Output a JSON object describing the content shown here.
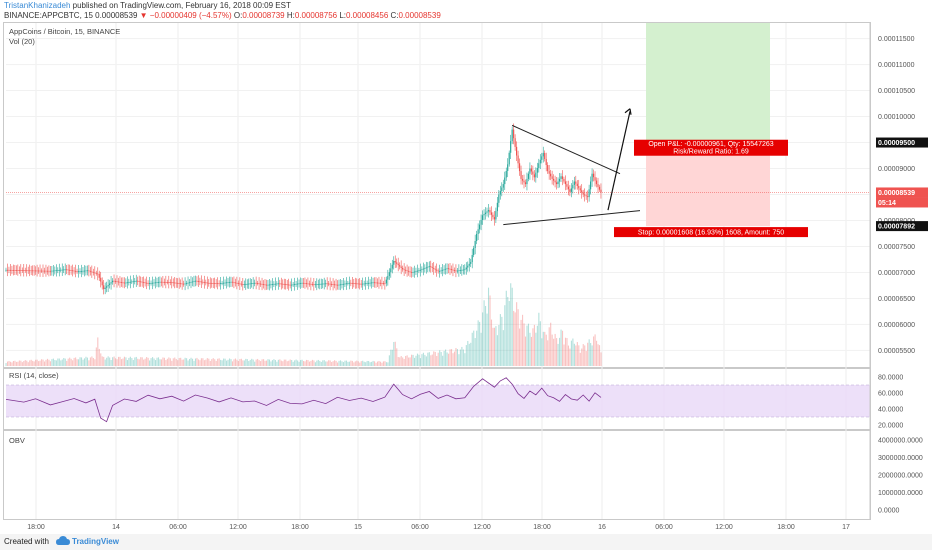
{
  "header": {
    "author": "TristanKhanizadeh",
    "published": " published on TradingView.com, February 16, 2018 00:09 EST",
    "symbol_line": "BINANCE:APPCBTC, 15  0.00008539",
    "change": "−0.00000409 (−4.57%)",
    "ohlc_o_label": "O:",
    "ohlc_o": "0.00008739",
    "ohlc_h_label": "H:",
    "ohlc_h": "0.00008756",
    "ohlc_l_label": "L:",
    "ohlc_l": "0.00008456",
    "ohlc_c_label": "C:",
    "ohlc_c": "0.00008539"
  },
  "panes": {
    "main_title": "AppCoins / Bitcoin, 15, BINANCE",
    "vol_label": "Vol (20)",
    "rsi_label": "RSI (14, close)",
    "obv_label": "OBV"
  },
  "position_tool": {
    "profit_label_line1": "Open P&L: -0.00000961, Qty: 15547263",
    "profit_label_line2": "Risk/Reward Ratio: 1.69",
    "stop_label": "Stop: 0.00001608 (16.93%) 1608, Amount: 750"
  },
  "price_tags": {
    "target": "0.00009500",
    "current": "0.00008539",
    "countdown": "05:14",
    "stop": "0.00007892"
  },
  "colors": {
    "up": "#26a69a",
    "down": "#ef5350",
    "rsi_line": "#7b2f8f",
    "rsi_band": "#e8d8f7",
    "profit_zone": "#d4f0cf",
    "loss_zone": "#ffd6d6",
    "label_red": "#e60000"
  },
  "chart_data": [
    {
      "type": "candlestick",
      "title": "AppCoins / Bitcoin, 15, BINANCE",
      "x_ticks": [
        "18:00",
        "14",
        "06:00",
        "12:00",
        "18:00",
        "15",
        "06:00",
        "12:00",
        "18:00",
        "16",
        "06:00",
        "12:00",
        "18:00",
        "17"
      ],
      "y_ticks": [
        "0.00011500",
        "0.00011000",
        "0.00010500",
        "0.00010000",
        "0.00009500",
        "0.00009000",
        "0.00008500",
        "0.00008000",
        "0.00007500",
        "0.00007000",
        "0.00006500",
        "0.00006000",
        "0.00005500"
      ],
      "ylim": [
        5.2e-05,
        0.000118
      ],
      "close_path": [
        [
          0,
          7.05e-05
        ],
        [
          15,
          7.04e-05
        ],
        [
          30,
          7.03e-05
        ],
        [
          40,
          7.06e-05
        ],
        [
          48,
          7.02e-05
        ],
        [
          55,
          7.04e-05
        ],
        [
          62,
          6.97e-05
        ],
        [
          66,
          6.68e-05
        ],
        [
          72,
          6.84e-05
        ],
        [
          80,
          6.8e-05
        ],
        [
          88,
          6.84e-05
        ],
        [
          96,
          6.79e-05
        ],
        [
          104,
          6.82e-05
        ],
        [
          112,
          6.81e-05
        ],
        [
          120,
          6.78e-05
        ],
        [
          128,
          6.84e-05
        ],
        [
          136,
          6.8e-05
        ],
        [
          144,
          6.79e-05
        ],
        [
          152,
          6.82e-05
        ],
        [
          160,
          6.77e-05
        ],
        [
          168,
          6.8e-05
        ],
        [
          176,
          6.76e-05
        ],
        [
          184,
          6.79e-05
        ],
        [
          192,
          6.76e-05
        ],
        [
          200,
          6.8e-05
        ],
        [
          208,
          6.77e-05
        ],
        [
          216,
          6.79e-05
        ],
        [
          224,
          6.76e-05
        ],
        [
          232,
          6.8e-05
        ],
        [
          240,
          6.78e-05
        ],
        [
          248,
          6.81e-05
        ],
        [
          256,
          6.79e-05
        ],
        [
          262,
          7.22e-05
        ],
        [
          268,
          7.06e-05
        ],
        [
          274,
          7e-05
        ],
        [
          280,
          7.05e-05
        ],
        [
          286,
          7.12e-05
        ],
        [
          292,
          7.02e-05
        ],
        [
          298,
          7.08e-05
        ],
        [
          304,
          7.03e-05
        ],
        [
          310,
          7.06e-05
        ],
        [
          314,
          7.2e-05
        ],
        [
          318,
          7.74e-05
        ],
        [
          322,
          8.1e-05
        ],
        [
          326,
          8.2e-05
        ],
        [
          330,
          8.02e-05
        ],
        [
          333,
          8.5e-05
        ],
        [
          336,
          8.7e-05
        ],
        [
          339,
          9.08e-05
        ],
        [
          342,
          9.75e-05
        ],
        [
          345,
          9.25e-05
        ],
        [
          348,
          8.8e-05
        ],
        [
          351,
          8.7e-05
        ],
        [
          354,
          9e-05
        ],
        [
          357,
          8.83e-05
        ],
        [
          360,
          9.1e-05
        ],
        [
          363,
          9.3e-05
        ],
        [
          366,
          8.95e-05
        ],
        [
          369,
          8.8e-05
        ],
        [
          372,
          8.7e-05
        ],
        [
          375,
          8.85e-05
        ],
        [
          378,
          8.7e-05
        ],
        [
          381,
          8.55e-05
        ],
        [
          384,
          8.75e-05
        ],
        [
          387,
          8.62e-05
        ],
        [
          390,
          8.5e-05
        ],
        [
          393,
          8.45e-05
        ],
        [
          396,
          8.9e-05
        ],
        [
          399,
          8.7e-05
        ],
        [
          402,
          8.54e-05
        ]
      ],
      "volume_profile": [
        [
          0,
          0.05
        ],
        [
          60,
          0.1
        ],
        [
          62,
          0.3
        ],
        [
          65,
          0.1
        ],
        [
          258,
          0.05
        ],
        [
          262,
          0.3
        ],
        [
          266,
          0.1
        ],
        [
          310,
          0.2
        ],
        [
          320,
          0.5
        ],
        [
          326,
          0.85
        ],
        [
          330,
          0.4
        ],
        [
          336,
          0.6
        ],
        [
          340,
          0.95
        ],
        [
          344,
          0.7
        ],
        [
          348,
          0.55
        ],
        [
          352,
          0.45
        ],
        [
          356,
          0.4
        ],
        [
          360,
          0.55
        ],
        [
          364,
          0.35
        ],
        [
          368,
          0.45
        ],
        [
          372,
          0.3
        ],
        [
          376,
          0.4
        ],
        [
          380,
          0.25
        ],
        [
          384,
          0.3
        ],
        [
          388,
          0.2
        ],
        [
          392,
          0.25
        ],
        [
          396,
          0.3
        ],
        [
          399,
          0.35
        ],
        [
          402,
          0.15
        ]
      ],
      "pattern": "symmetrical triangle",
      "target_price": 9.5e-05,
      "stop_price": 7.892e-05,
      "current_price": 8.539e-05
    },
    {
      "type": "line",
      "title": "RSI (14, close)",
      "y_ticks": [
        "80.0000",
        "60.0000",
        "40.0000",
        "20.0000"
      ],
      "ylim": [
        15,
        90
      ],
      "bands": [
        30,
        70
      ],
      "values": [
        [
          0,
          52
        ],
        [
          12,
          50
        ],
        [
          20,
          55
        ],
        [
          30,
          48
        ],
        [
          38,
          52
        ],
        [
          46,
          56
        ],
        [
          54,
          50
        ],
        [
          60,
          54
        ],
        [
          64,
          30
        ],
        [
          68,
          25
        ],
        [
          72,
          45
        ],
        [
          80,
          52
        ],
        [
          88,
          48
        ],
        [
          96,
          55
        ],
        [
          104,
          50
        ],
        [
          112,
          53
        ],
        [
          120,
          47
        ],
        [
          128,
          55
        ],
        [
          136,
          52
        ],
        [
          144,
          48
        ],
        [
          152,
          54
        ],
        [
          160,
          50
        ],
        [
          168,
          52
        ],
        [
          176,
          47
        ],
        [
          184,
          55
        ],
        [
          192,
          50
        ],
        [
          200,
          49
        ],
        [
          208,
          53
        ],
        [
          216,
          48
        ],
        [
          224,
          55
        ],
        [
          232,
          50
        ],
        [
          240,
          52
        ],
        [
          248,
          47
        ],
        [
          256,
          52
        ],
        [
          262,
          68
        ],
        [
          268,
          55
        ],
        [
          274,
          50
        ],
        [
          280,
          56
        ],
        [
          286,
          60
        ],
        [
          292,
          52
        ],
        [
          298,
          57
        ],
        [
          304,
          53
        ],
        [
          310,
          55
        ],
        [
          316,
          70
        ],
        [
          322,
          80
        ],
        [
          326,
          75
        ],
        [
          330,
          70
        ],
        [
          334,
          78
        ],
        [
          338,
          82
        ],
        [
          342,
          74
        ],
        [
          346,
          62
        ],
        [
          350,
          56
        ],
        [
          354,
          65
        ],
        [
          358,
          60
        ],
        [
          362,
          68
        ],
        [
          366,
          58
        ],
        [
          370,
          55
        ],
        [
          374,
          50
        ],
        [
          378,
          58
        ],
        [
          382,
          52
        ],
        [
          386,
          50
        ],
        [
          390,
          56
        ],
        [
          394,
          48
        ],
        [
          398,
          58
        ],
        [
          402,
          52
        ]
      ]
    },
    {
      "type": "line",
      "title": "OBV",
      "y_ticks": [
        "4000000.0000",
        "3000000.0000",
        "2000000.0000",
        "1000000.0000",
        "0.0000"
      ],
      "ylim": [
        -500000,
        4500000
      ],
      "values": []
    }
  ]
}
